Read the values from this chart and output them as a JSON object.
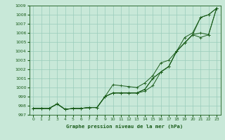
{
  "title": "Graphe pression niveau de la mer (hPa)",
  "background_color": "#c8e8d8",
  "grid_color": "#99ccbb",
  "line_color": "#1a5c1a",
  "xlim": [
    -0.5,
    23.5
  ],
  "ylim": [
    997,
    1009
  ],
  "xticks": [
    0,
    1,
    2,
    3,
    4,
    5,
    6,
    7,
    8,
    9,
    10,
    11,
    12,
    13,
    14,
    15,
    16,
    17,
    18,
    19,
    20,
    21,
    22,
    23
  ],
  "yticks": [
    997,
    998,
    999,
    1000,
    1001,
    1002,
    1003,
    1004,
    1005,
    1006,
    1007,
    1008,
    1009
  ],
  "series": [
    [
      997.7,
      997.7,
      997.7,
      998.2,
      997.6,
      997.7,
      997.7,
      997.8,
      997.8,
      999.0,
      1000.3,
      1000.2,
      1000.1,
      1000.0,
      1000.5,
      1001.3,
      1002.7,
      1003.0,
      1004.0,
      1005.5,
      1006.0,
      1007.7,
      1008.0,
      1008.7
    ],
    [
      997.7,
      997.7,
      997.7,
      998.2,
      997.6,
      997.7,
      997.7,
      997.8,
      997.8,
      999.0,
      999.4,
      999.4,
      999.4,
      999.4,
      999.8,
      1001.0,
      1001.7,
      1002.3,
      1004.0,
      1004.9,
      1005.8,
      1005.5,
      1005.8,
      1008.7
    ],
    [
      997.7,
      997.7,
      997.7,
      998.2,
      997.6,
      997.7,
      997.7,
      997.8,
      997.8,
      999.0,
      999.4,
      999.4,
      999.4,
      999.4,
      999.8,
      1001.0,
      1001.7,
      1002.3,
      1004.0,
      1004.9,
      1005.8,
      1006.0,
      1005.8,
      1008.7
    ],
    [
      997.7,
      997.7,
      997.7,
      998.2,
      997.6,
      997.7,
      997.7,
      997.8,
      997.8,
      999.0,
      999.4,
      999.4,
      999.4,
      999.4,
      999.6,
      1000.2,
      1001.7,
      1002.3,
      1004.0,
      1004.9,
      1005.8,
      1007.7,
      1008.0,
      1008.7
    ]
  ]
}
